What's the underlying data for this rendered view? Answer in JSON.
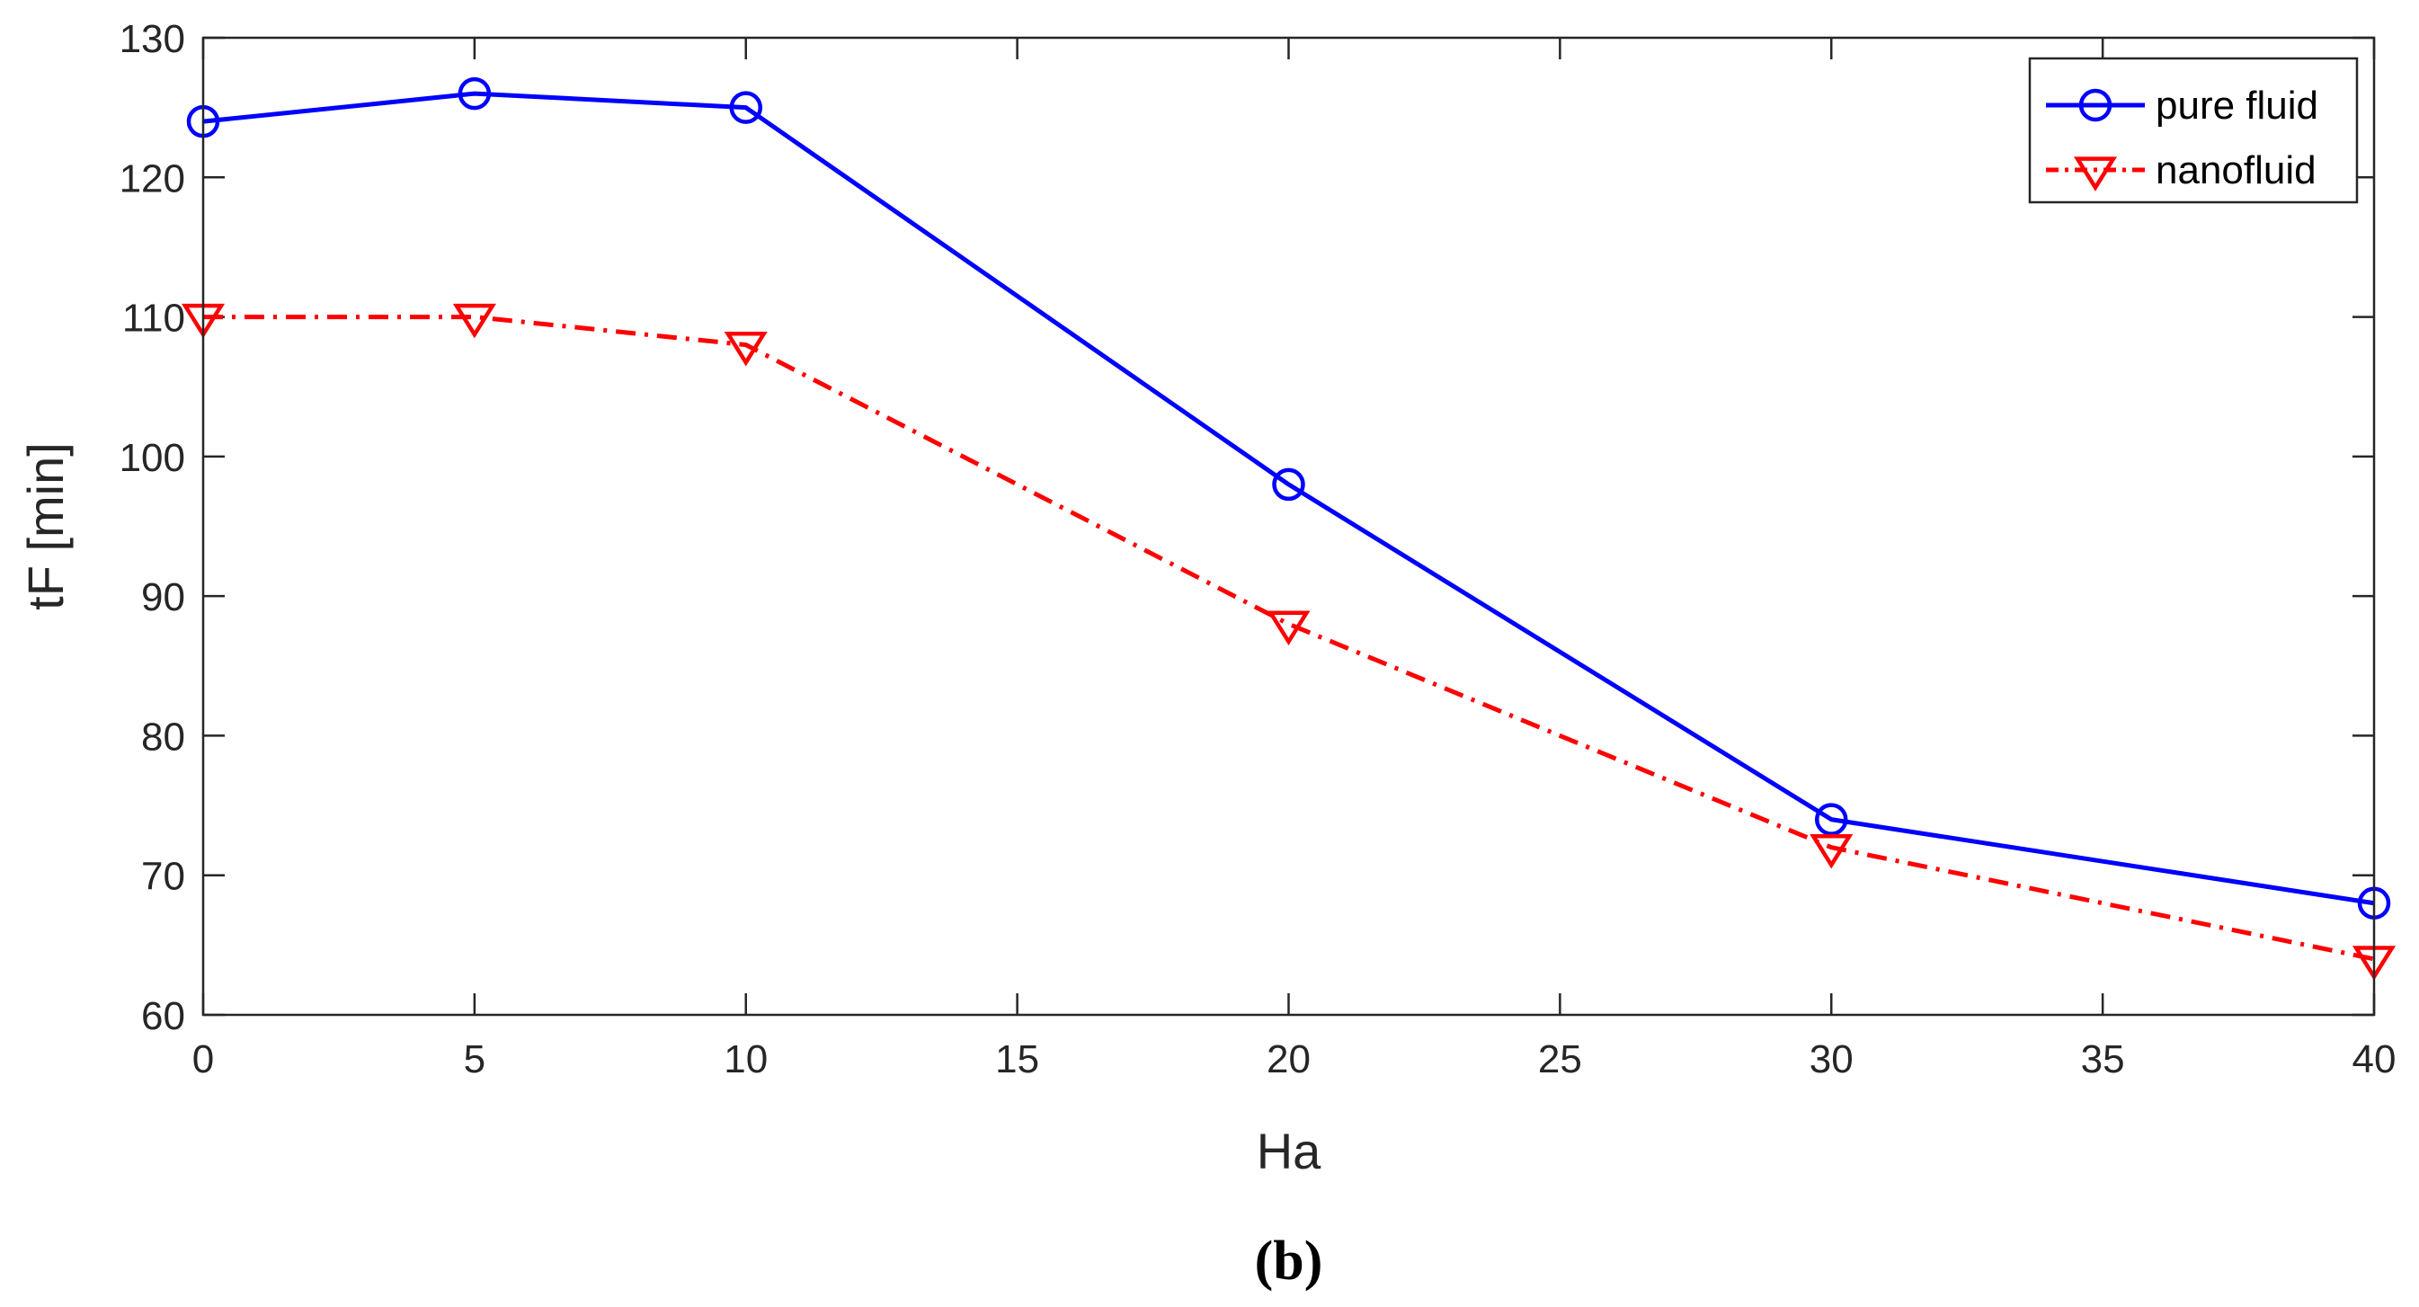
{
  "chart_data": {
    "type": "line",
    "title": "",
    "xlabel": "Ha",
    "ylabel": "tF [min]",
    "xlim": [
      0,
      40
    ],
    "ylim": [
      60,
      130
    ],
    "xticks": [
      0,
      5,
      10,
      15,
      20,
      25,
      30,
      35,
      40
    ],
    "yticks": [
      60,
      70,
      80,
      90,
      100,
      110,
      120,
      130
    ],
    "grid": false,
    "legend_position": "top-right",
    "caption": "(b)",
    "series": [
      {
        "name": "pure fluid",
        "color": "#0000ff",
        "line_style": "solid",
        "marker": "circle",
        "x": [
          0,
          5,
          10,
          20,
          30,
          40
        ],
        "y": [
          124,
          126,
          125,
          98,
          74,
          68
        ]
      },
      {
        "name": "nanofluid",
        "color": "#ff0000",
        "line_style": "dash-dot",
        "marker": "triangle-down",
        "x": [
          0,
          5,
          10,
          20,
          30,
          40
        ],
        "y": [
          110,
          110,
          108,
          88,
          72,
          64
        ]
      }
    ]
  }
}
